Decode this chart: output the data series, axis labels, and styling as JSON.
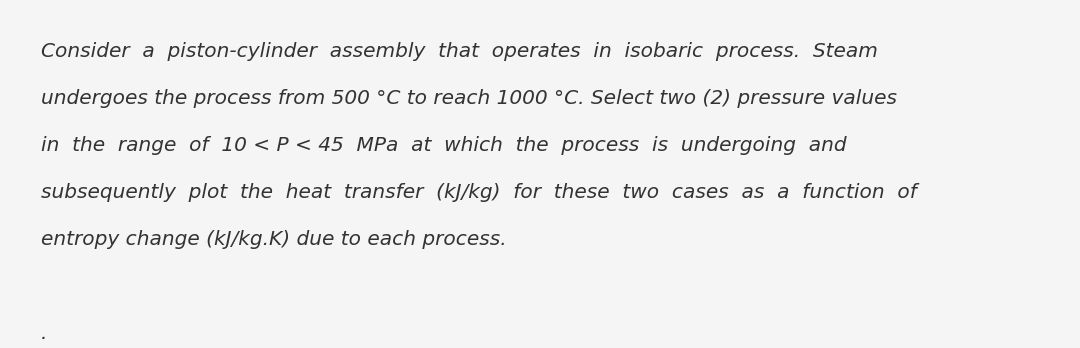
{
  "line1": "Consider  a  piston-cylinder  assembly  that  operates  in  isobaric  process.  Steam",
  "line2": "undergoes the process from 500 °C to reach 1000 °C. Select two (2) pressure values",
  "line3": "in  the  range  of  10 < P < 45  MPa  at  which  the  process  is  undergoing  and",
  "line4": "subsequently  plot  the  heat  transfer  (kJ/kg)  for  these  two  cases  as  a  function  of",
  "line5": "entropy change (kJ/kg.K) due to each process.",
  "dot": ".",
  "background_color": "#f5f5f5",
  "text_color": "#333333",
  "font_size": 14.5,
  "style": "italic"
}
